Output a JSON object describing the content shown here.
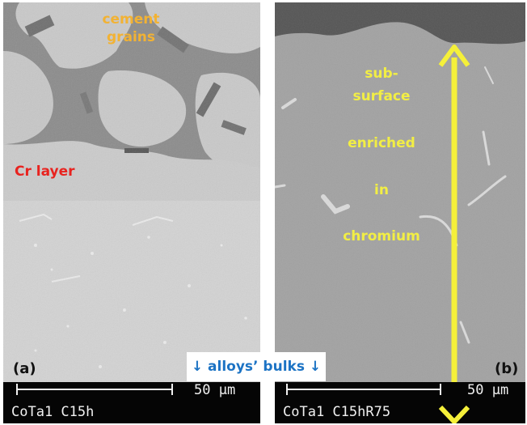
{
  "panel_a": {
    "tag": "(a)",
    "label_cement": "cement\ngrains",
    "label_cr_layer": "Cr layer",
    "scale_text": "50 μm",
    "sample_name": "CoTa1 C15h"
  },
  "panel_b": {
    "tag": "(b)",
    "label_lines": [
      "sub-",
      "surface",
      "enriched",
      "in",
      "chromium"
    ],
    "scale_text": "50 μm",
    "sample_name": "CoTa1 C15hR75"
  },
  "center_caption": "↓ alloys’ bulks ↓",
  "colors": {
    "cement_label": "#f2b233",
    "cr_label": "#e8231f",
    "enriched_label": "#f2ee44",
    "arrow": "#f5f03a",
    "caption": "#1c73c4"
  }
}
